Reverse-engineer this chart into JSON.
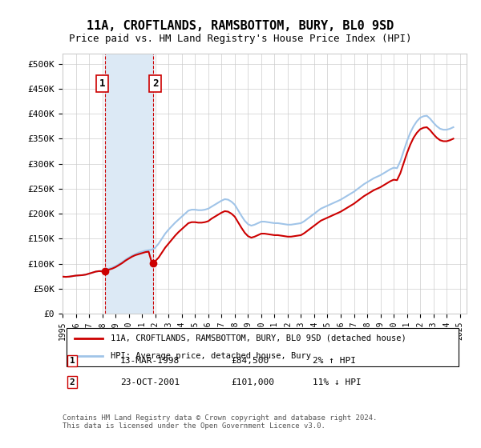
{
  "title": "11A, CROFTLANDS, RAMSBOTTOM, BURY, BL0 9SD",
  "subtitle": "Price paid vs. HM Land Registry's House Price Index (HPI)",
  "ylabel_ticks": [
    "£0",
    "£50K",
    "£100K",
    "£150K",
    "£200K",
    "£250K",
    "£300K",
    "£350K",
    "£400K",
    "£450K",
    "£500K"
  ],
  "ytick_values": [
    0,
    50000,
    100000,
    150000,
    200000,
    250000,
    300000,
    350000,
    400000,
    450000,
    500000
  ],
  "ylim": [
    0,
    520000
  ],
  "xlim_start": 1995.0,
  "xlim_end": 2025.5,
  "sale1_x": 1998.19,
  "sale1_y": 84500,
  "sale2_x": 2001.81,
  "sale2_y": 101000,
  "sale1_label": "1",
  "sale2_label": "2",
  "sale_color": "#cc0000",
  "hpi_color": "#a0c4e8",
  "shaded_color": "#dce9f5",
  "grid_color": "#cccccc",
  "background_color": "#ffffff",
  "legend_line1": "11A, CROFTLANDS, RAMSBOTTOM, BURY, BL0 9SD (detached house)",
  "legend_line2": "HPI: Average price, detached house, Bury",
  "table_row1": [
    "1",
    "13-MAR-1998",
    "£84,500",
    "2% ↑ HPI"
  ],
  "table_row2": [
    "2",
    "23-OCT-2001",
    "£101,000",
    "11% ↓ HPI"
  ],
  "footnote": "Contains HM Land Registry data © Crown copyright and database right 2024.\nThis data is licensed under the Open Government Licence v3.0.",
  "hpi_data_x": [
    1995.0,
    1995.25,
    1995.5,
    1995.75,
    1996.0,
    1996.25,
    1996.5,
    1996.75,
    1997.0,
    1997.25,
    1997.5,
    1997.75,
    1998.0,
    1998.25,
    1998.5,
    1998.75,
    1999.0,
    1999.25,
    1999.5,
    1999.75,
    2000.0,
    2000.25,
    2000.5,
    2000.75,
    2001.0,
    2001.25,
    2001.5,
    2001.75,
    2002.0,
    2002.25,
    2002.5,
    2002.75,
    2003.0,
    2003.25,
    2003.5,
    2003.75,
    2004.0,
    2004.25,
    2004.5,
    2004.75,
    2005.0,
    2005.25,
    2005.5,
    2005.75,
    2006.0,
    2006.25,
    2006.5,
    2006.75,
    2007.0,
    2007.25,
    2007.5,
    2007.75,
    2008.0,
    2008.25,
    2008.5,
    2008.75,
    2009.0,
    2009.25,
    2009.5,
    2009.75,
    2010.0,
    2010.25,
    2010.5,
    2010.75,
    2011.0,
    2011.25,
    2011.5,
    2011.75,
    2012.0,
    2012.25,
    2012.5,
    2012.75,
    2013.0,
    2013.25,
    2013.5,
    2013.75,
    2014.0,
    2014.25,
    2014.5,
    2014.75,
    2015.0,
    2015.25,
    2015.5,
    2015.75,
    2016.0,
    2016.25,
    2016.5,
    2016.75,
    2017.0,
    2017.25,
    2017.5,
    2017.75,
    2018.0,
    2018.25,
    2018.5,
    2018.75,
    2019.0,
    2019.25,
    2019.5,
    2019.75,
    2020.0,
    2020.25,
    2020.5,
    2020.75,
    2021.0,
    2021.25,
    2021.5,
    2021.75,
    2022.0,
    2022.25,
    2022.5,
    2022.75,
    2023.0,
    2023.25,
    2023.5,
    2023.75,
    2024.0,
    2024.25,
    2024.5
  ],
  "hpi_data_y": [
    74000,
    73500,
    74000,
    75000,
    76000,
    76500,
    77000,
    78000,
    80000,
    82000,
    84000,
    85000,
    86000,
    88000,
    90000,
    92000,
    95000,
    99000,
    103000,
    108000,
    112000,
    116000,
    119000,
    122000,
    124000,
    126000,
    127000,
    128000,
    132000,
    140000,
    150000,
    160000,
    168000,
    175000,
    182000,
    188000,
    194000,
    200000,
    206000,
    208000,
    208000,
    207000,
    207000,
    208000,
    210000,
    214000,
    218000,
    222000,
    226000,
    229000,
    228000,
    224000,
    218000,
    207000,
    196000,
    186000,
    179000,
    176000,
    178000,
    181000,
    184000,
    184000,
    183000,
    182000,
    181000,
    181000,
    180000,
    179000,
    178000,
    178000,
    179000,
    180000,
    181000,
    185000,
    190000,
    195000,
    200000,
    205000,
    210000,
    213000,
    216000,
    219000,
    222000,
    225000,
    228000,
    232000,
    236000,
    240000,
    244000,
    249000,
    254000,
    259000,
    263000,
    267000,
    271000,
    274000,
    277000,
    281000,
    285000,
    289000,
    292000,
    291000,
    305000,
    325000,
    345000,
    362000,
    375000,
    385000,
    392000,
    395000,
    396000,
    390000,
    382000,
    375000,
    370000,
    368000,
    368000,
    370000,
    373000
  ],
  "price_line_x": [
    1995.0,
    1995.25,
    1995.5,
    1995.75,
    1996.0,
    1996.25,
    1996.5,
    1996.75,
    1997.0,
    1997.25,
    1997.5,
    1997.75,
    1998.0,
    1998.25,
    1998.5,
    1998.75,
    1999.0,
    1999.25,
    1999.5,
    1999.75,
    2000.0,
    2000.25,
    2000.5,
    2000.75,
    2001.0,
    2001.25,
    2001.5,
    2001.75,
    2002.0,
    2002.25,
    2002.5,
    2002.75,
    2003.0,
    2003.25,
    2003.5,
    2003.75,
    2004.0,
    2004.25,
    2004.5,
    2004.75,
    2005.0,
    2005.25,
    2005.5,
    2005.75,
    2006.0,
    2006.25,
    2006.5,
    2006.75,
    2007.0,
    2007.25,
    2007.5,
    2007.75,
    2008.0,
    2008.25,
    2008.5,
    2008.75,
    2009.0,
    2009.25,
    2009.5,
    2009.75,
    2010.0,
    2010.25,
    2010.5,
    2010.75,
    2011.0,
    2011.25,
    2011.5,
    2011.75,
    2012.0,
    2012.25,
    2012.5,
    2012.75,
    2013.0,
    2013.25,
    2013.5,
    2013.75,
    2014.0,
    2014.25,
    2014.5,
    2014.75,
    2015.0,
    2015.25,
    2015.5,
    2015.75,
    2016.0,
    2016.25,
    2016.5,
    2016.75,
    2017.0,
    2017.25,
    2017.5,
    2017.75,
    2018.0,
    2018.25,
    2018.5,
    2018.75,
    2019.0,
    2019.25,
    2019.5,
    2019.75,
    2020.0,
    2020.25,
    2020.5,
    2020.75,
    2021.0,
    2021.25,
    2021.5,
    2021.75,
    2022.0,
    2022.25,
    2022.5,
    2022.75,
    2023.0,
    2023.25,
    2023.5,
    2023.75,
    2024.0,
    2024.25,
    2024.5
  ],
  "price_line_y": [
    74000,
    73500,
    74000,
    75000,
    76000,
    76500,
    77000,
    78000,
    80000,
    82000,
    84000,
    85000,
    84500,
    86000,
    88000,
    90000,
    93000,
    97000,
    101000,
    106000,
    110000,
    114000,
    117000,
    119000,
    121000,
    123000,
    124000,
    101000,
    105000,
    112000,
    122000,
    132000,
    140000,
    148000,
    156000,
    163000,
    169000,
    175000,
    181000,
    183000,
    183000,
    182000,
    182000,
    183000,
    185000,
    190000,
    194000,
    198000,
    202000,
    205000,
    204000,
    200000,
    194000,
    183000,
    172000,
    162000,
    155000,
    152000,
    154000,
    157000,
    160000,
    160000,
    159000,
    158000,
    157000,
    157000,
    156000,
    155000,
    154000,
    154000,
    155000,
    156000,
    157000,
    161000,
    166000,
    171000,
    176000,
    181000,
    186000,
    189000,
    192000,
    195000,
    198000,
    201000,
    204000,
    208000,
    212000,
    216000,
    220000,
    225000,
    230000,
    235000,
    239000,
    243000,
    247000,
    250000,
    253000,
    257000,
    261000,
    265000,
    268000,
    267000,
    281000,
    301000,
    321000,
    338000,
    352000,
    362000,
    369000,
    372000,
    373000,
    367000,
    359000,
    352000,
    347000,
    345000,
    345000,
    347000,
    350000
  ],
  "shade_x1": 1998.19,
  "shade_x2": 2001.81
}
